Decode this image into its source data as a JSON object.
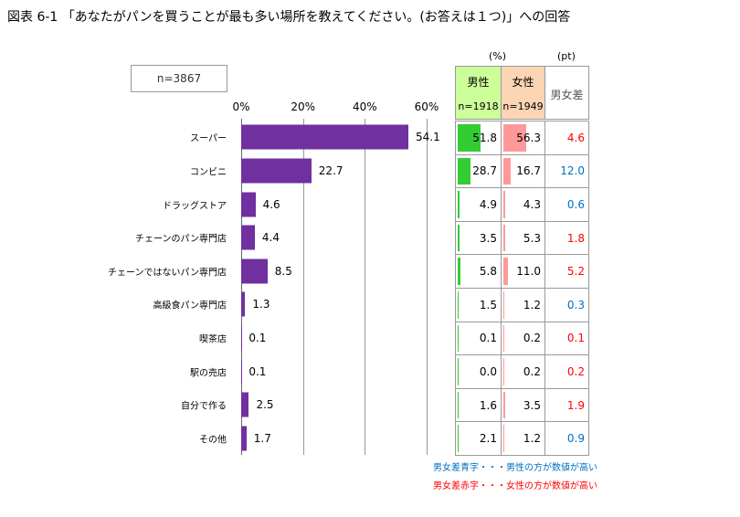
{
  "title": "図表 6-1 「あなたがパンを買うことが最も多い場所を教えてください。(お答えは１つ)」への回答",
  "n_label": "n=3867",
  "chart_data": {
    "type": "bar",
    "orientation": "horizontal",
    "categories": [
      "スーパー",
      "コンビニ",
      "ドラッグストア",
      "チェーンのパン専門店",
      "チェーンではないパン専門店",
      "高級食パン専門店",
      "喫茶店",
      "駅の売店",
      "自分で作る",
      "その他"
    ],
    "values": [
      54.1,
      22.7,
      4.6,
      4.4,
      8.5,
      1.3,
      0.1,
      0.1,
      2.5,
      1.7
    ],
    "value_labels": [
      "54.1",
      "22.7",
      "4.6",
      "4.4",
      "8.5",
      "1.3",
      "0.1",
      "0.1",
      "2.5",
      "1.7"
    ],
    "xlim": [
      0,
      60
    ],
    "xticks": [
      "0%",
      "20%",
      "40%",
      "60%"
    ],
    "bar_color": "#7030a0",
    "grid": true
  },
  "table": {
    "unit_pct": "(%)",
    "unit_pt": "(pt)",
    "male": {
      "label": "男性",
      "n": "n=1918",
      "color": "#33cc33",
      "bg": "#ccff99"
    },
    "female": {
      "label": "女性",
      "n": "n=1949",
      "color": "#ff9999",
      "bg": "#fcd5b4"
    },
    "diff_label": "男女差",
    "male_values": [
      51.8,
      28.7,
      4.9,
      3.5,
      5.8,
      1.5,
      0.1,
      0.0,
      1.6,
      2.1
    ],
    "male_labels": [
      "51.8",
      "28.7",
      "4.9",
      "3.5",
      "5.8",
      "1.5",
      "0.1",
      "0.0",
      "1.6",
      "2.1"
    ],
    "female_values": [
      56.3,
      16.7,
      4.3,
      5.3,
      11.0,
      1.2,
      0.2,
      0.2,
      3.5,
      1.2
    ],
    "female_labels": [
      "56.3",
      "16.7",
      "4.3",
      "5.3",
      "11.0",
      "1.2",
      "0.2",
      "0.2",
      "3.5",
      "1.2"
    ],
    "diff_labels": [
      "4.6",
      "12.0",
      "0.6",
      "1.8",
      "5.2",
      "0.3",
      "0.1",
      "0.2",
      "1.9",
      "0.9"
    ],
    "diff_colors": [
      "red",
      "blue",
      "blue",
      "red",
      "red",
      "blue",
      "red",
      "red",
      "red",
      "blue"
    ]
  },
  "colors": {
    "blue": "#0070c0",
    "red": "#ff0000"
  },
  "notes": {
    "blue": "男女差青字・・・男性の方が数値が高い",
    "red": "男女差赤字・・・女性の方が数値が高い"
  }
}
